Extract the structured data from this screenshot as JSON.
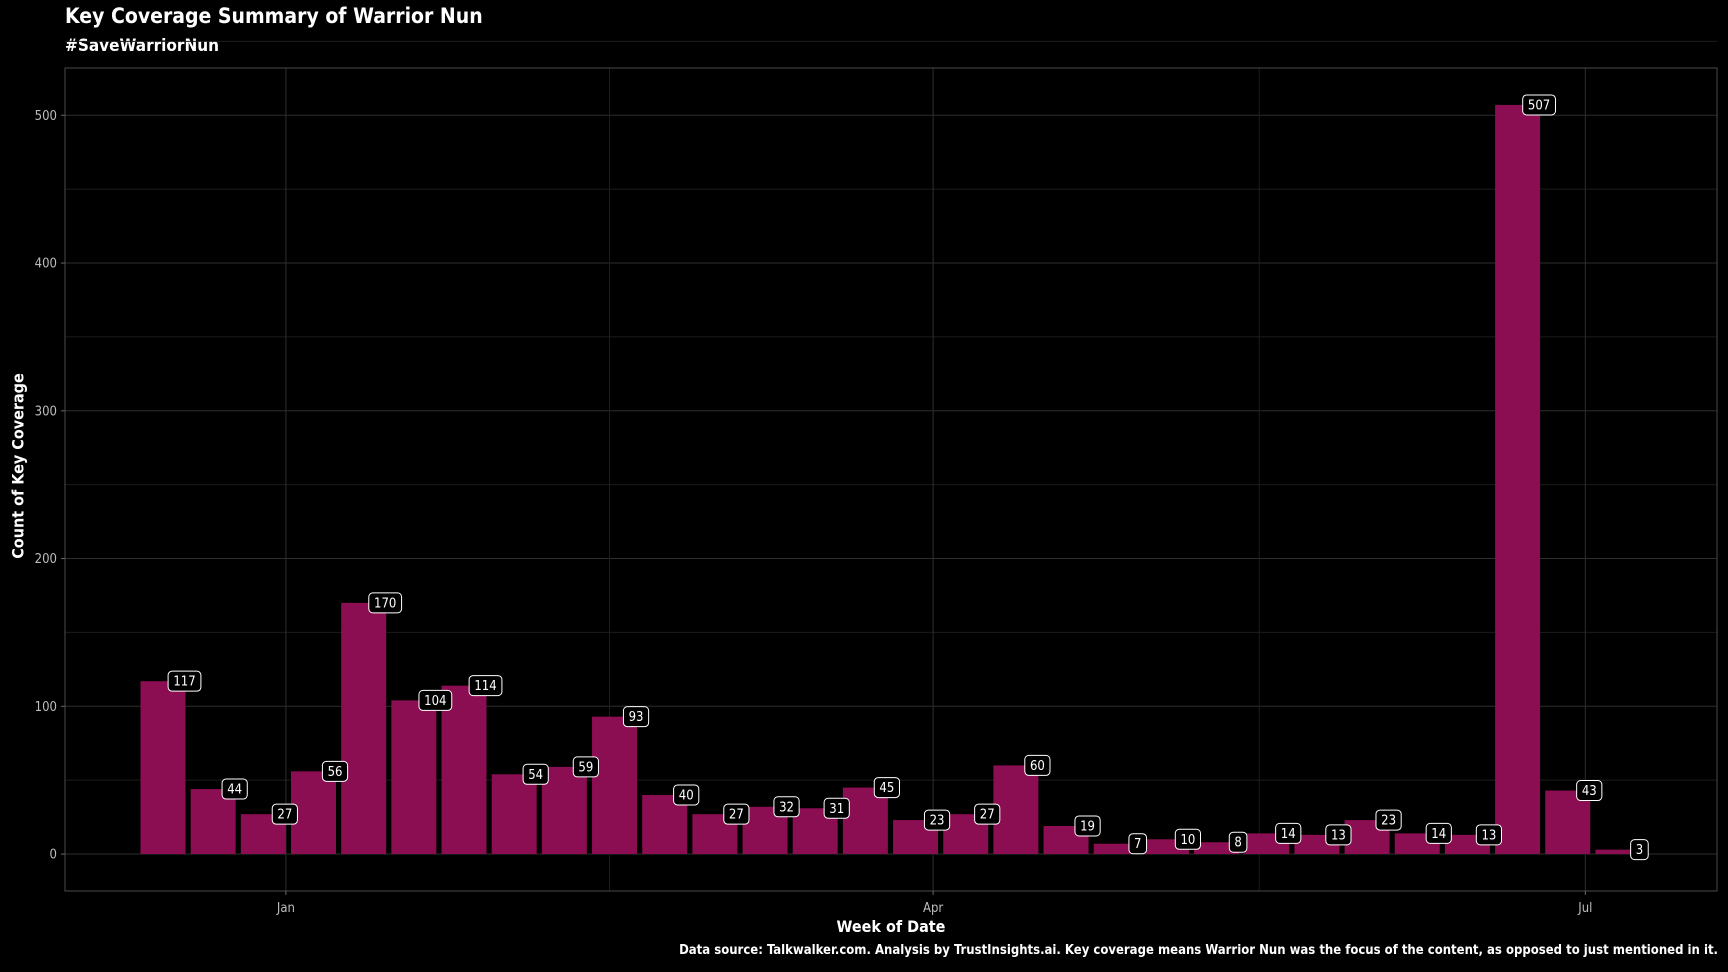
{
  "chart_data": {
    "type": "bar",
    "title": "Key Coverage Summary of Warrior Nun",
    "subtitle": "#SaveWarriorNun",
    "xlabel": "Week of Date",
    "ylabel": "Count of Key Coverage",
    "caption": "Data source: Talkwalker.com. Analysis by TrustInsights.ai. Key coverage means Warrior Nun was the focus of the content, as opposed to just mentioned in it.",
    "bar_color": "#8b0d52",
    "background": "#000000",
    "grid": true,
    "legend": "none",
    "x_ticks": [
      {
        "label": "Jan",
        "week_index": 2.45
      },
      {
        "label": "Apr",
        "week_index": 15.35
      },
      {
        "label": "Jul",
        "week_index": 28.35
      }
    ],
    "y_ticks": [
      0,
      100,
      200,
      300,
      400,
      500
    ],
    "ylim": [
      -25,
      532
    ],
    "values": [
      117,
      44,
      27,
      56,
      170,
      104,
      114,
      54,
      59,
      93,
      40,
      27,
      32,
      31,
      45,
      23,
      27,
      60,
      19,
      7,
      10,
      8,
      14,
      13,
      23,
      14,
      13,
      507,
      43,
      3
    ]
  }
}
